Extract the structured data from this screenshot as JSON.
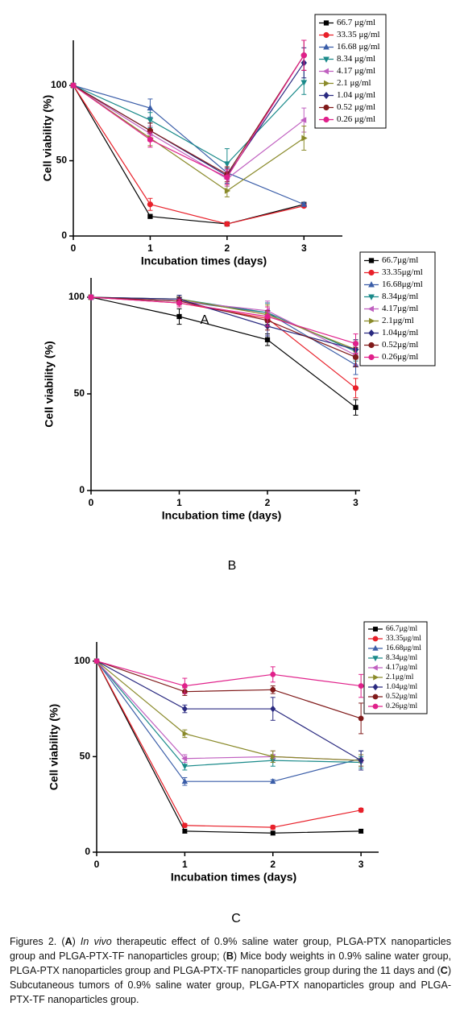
{
  "chart_data": [
    {
      "type": "line",
      "x": [
        0,
        1,
        2,
        3
      ],
      "xlim": [
        0,
        3.5
      ],
      "xticks": [
        0,
        1,
        2,
        3
      ],
      "ylim": [
        0,
        130
      ],
      "yticks": [
        0,
        50,
        100
      ],
      "x_label": "Incubation times (days)",
      "y_label": "Cell viability (%)",
      "grid": false,
      "series": [
        {
          "name": "66.7 μg/ml",
          "color": "#000000",
          "marker": "square",
          "values": [
            100,
            13,
            8,
            21
          ],
          "errors": [
            0,
            1,
            1,
            1
          ]
        },
        {
          "name": "33.35 μg/ml",
          "color": "#e8202a",
          "marker": "circle",
          "values": [
            100,
            21,
            8,
            20
          ],
          "errors": [
            0,
            4,
            1,
            1
          ]
        },
        {
          "name": "16.68 μg/ml",
          "color": "#3a5da8",
          "marker": "triangle-up",
          "values": [
            100,
            85,
            42,
            21
          ],
          "errors": [
            0,
            6,
            3,
            1
          ]
        },
        {
          "name": "8.34 μg/ml",
          "color": "#1a8a8a",
          "marker": "triangle-down",
          "values": [
            100,
            77,
            48,
            102
          ],
          "errors": [
            0,
            5,
            10,
            8
          ]
        },
        {
          "name": "4.17 μg/ml",
          "color": "#c060c0",
          "marker": "triangle-left",
          "values": [
            100,
            68,
            38,
            77
          ],
          "errors": [
            0,
            5,
            5,
            8
          ]
        },
        {
          "name": "2.1 μg/ml",
          "color": "#8a8a2a",
          "marker": "triangle-right",
          "values": [
            100,
            65,
            30,
            65
          ],
          "errors": [
            0,
            5,
            4,
            8
          ]
        },
        {
          "name": "1.04 μg/ml",
          "color": "#2a2a80",
          "marker": "diamond",
          "values": [
            100,
            70,
            40,
            115
          ],
          "errors": [
            0,
            5,
            5,
            10
          ]
        },
        {
          "name": "0.52 μg/ml",
          "color": "#801a1a",
          "marker": "circle",
          "values": [
            100,
            70,
            41,
            120
          ],
          "errors": [
            0,
            5,
            5,
            10
          ]
        },
        {
          "name": "0.26 μg/ml",
          "color": "#e0208a",
          "marker": "circle",
          "values": [
            100,
            64,
            39,
            120
          ],
          "errors": [
            0,
            5,
            5,
            10
          ]
        }
      ]
    },
    {
      "type": "line",
      "x": [
        0,
        1,
        2,
        3
      ],
      "xlim": [
        0,
        3.05
      ],
      "xticks": [
        0,
        1,
        2,
        3
      ],
      "ylim": [
        0,
        110
      ],
      "yticks": [
        0,
        50,
        100
      ],
      "x_label": "Incubation time (days)",
      "y_label": "Cell viability (%)",
      "grid": false,
      "series": [
        {
          "name": "66.7μg/ml",
          "color": "#000000",
          "marker": "square",
          "values": [
            100,
            90,
            78,
            43
          ],
          "errors": [
            0,
            4,
            3,
            4
          ]
        },
        {
          "name": "33.35μg/ml",
          "color": "#e8202a",
          "marker": "circle",
          "values": [
            100,
            97,
            89,
            53
          ],
          "errors": [
            0,
            2,
            4,
            5
          ]
        },
        {
          "name": "16.68μg/ml",
          "color": "#3a5da8",
          "marker": "triangle-up",
          "values": [
            100,
            98,
            92,
            65
          ],
          "errors": [
            0,
            2,
            5,
            5
          ]
        },
        {
          "name": "8.34μg/ml",
          "color": "#1a8a8a",
          "marker": "triangle-down",
          "values": [
            100,
            99,
            92,
            72
          ],
          "errors": [
            0,
            2,
            5,
            5
          ]
        },
        {
          "name": "4.17μg/ml",
          "color": "#c060c0",
          "marker": "triangle-left",
          "values": [
            100,
            98,
            93,
            70
          ],
          "errors": [
            0,
            2,
            5,
            5
          ]
        },
        {
          "name": "2.1μg/ml",
          "color": "#8a8a2a",
          "marker": "triangle-right",
          "values": [
            100,
            99,
            91,
            73
          ],
          "errors": [
            0,
            2,
            5,
            5
          ]
        },
        {
          "name": "1.04μg/ml",
          "color": "#2a2a80",
          "marker": "diamond",
          "values": [
            100,
            99,
            85,
            73
          ],
          "errors": [
            0,
            2,
            5,
            5
          ]
        },
        {
          "name": "0.52μg/ml",
          "color": "#801a1a",
          "marker": "circle",
          "values": [
            100,
            98,
            88,
            69
          ],
          "errors": [
            0,
            2,
            5,
            5
          ]
        },
        {
          "name": "0.26μg/ml",
          "color": "#e0208a",
          "marker": "circle",
          "values": [
            100,
            97,
            90,
            76
          ],
          "errors": [
            0,
            2,
            5,
            5
          ]
        }
      ]
    },
    {
      "type": "line",
      "x": [
        0,
        1,
        2,
        3
      ],
      "xlim": [
        0,
        3.2
      ],
      "xticks": [
        0,
        1,
        2,
        3
      ],
      "ylim": [
        0,
        110
      ],
      "yticks": [
        0,
        50,
        100
      ],
      "x_label": "Incubation times (days)",
      "y_label": "Cell viability (%)",
      "grid": false,
      "series": [
        {
          "name": "66.7μg/ml",
          "color": "#000000",
          "marker": "square",
          "values": [
            100,
            11,
            10,
            11
          ],
          "errors": [
            0,
            1,
            1,
            1
          ]
        },
        {
          "name": "33.35μg/ml",
          "color": "#e8202a",
          "marker": "circle",
          "values": [
            100,
            14,
            13,
            22
          ],
          "errors": [
            0,
            1,
            1,
            1
          ]
        },
        {
          "name": "16.68μg/ml",
          "color": "#3a5da8",
          "marker": "triangle-up",
          "values": [
            100,
            37,
            37,
            49
          ],
          "errors": [
            0,
            2,
            1,
            4
          ]
        },
        {
          "name": "8.34μg/ml",
          "color": "#1a8a8a",
          "marker": "triangle-down",
          "values": [
            100,
            45,
            48,
            47
          ],
          "errors": [
            0,
            2,
            3,
            3
          ]
        },
        {
          "name": "4.17μg/ml",
          "color": "#c060c0",
          "marker": "triangle-left",
          "values": [
            100,
            49,
            50,
            48
          ],
          "errors": [
            0,
            2,
            3,
            3
          ]
        },
        {
          "name": "2.1μg/ml",
          "color": "#8a8a2a",
          "marker": "triangle-right",
          "values": [
            100,
            62,
            50,
            48
          ],
          "errors": [
            0,
            2,
            3,
            3
          ]
        },
        {
          "name": "1.04μg/ml",
          "color": "#2a2a80",
          "marker": "diamond",
          "values": [
            100,
            75,
            75,
            48
          ],
          "errors": [
            0,
            2,
            6,
            5
          ]
        },
        {
          "name": "0.52μg/ml",
          "color": "#801a1a",
          "marker": "circle",
          "values": [
            100,
            84,
            85,
            70
          ],
          "errors": [
            0,
            2,
            2,
            8
          ]
        },
        {
          "name": "0.26μg/ml",
          "color": "#e0208a",
          "marker": "circle",
          "values": [
            100,
            87,
            93,
            87
          ],
          "errors": [
            0,
            4,
            4,
            6
          ]
        }
      ]
    }
  ],
  "panel_labels": [
    "A",
    "B",
    "C"
  ],
  "caption": [
    "Figures 2. (",
    "A",
    ") ",
    "In vivo",
    " therapeutic effect of 0.9% saline water group, PLGA-PTX nanoparticles group and PLGA-PTX-TF nanoparticles group; (",
    "B",
    ") Mice body weights in 0.9% saline water group, PLGA-PTX nanoparticles group and PLGA-PTX-TF nanoparticles group during the 11 days and (",
    "C",
    ") Subcutaneous tumors of 0.9% saline water group, PLGA-PTX nanoparticles group and PLGA-PTX-TF nanoparticles group."
  ]
}
